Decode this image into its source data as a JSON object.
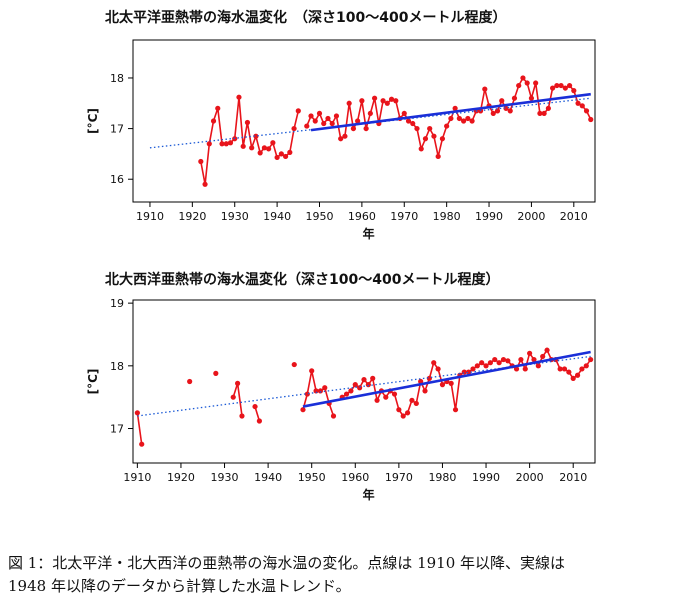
{
  "chart_data": [
    {
      "type": "line",
      "title": "北太平洋亜熱帯の海水温変化　（深さ100～400メートル程度）",
      "xlabel": "年",
      "ylabel": "[°C]",
      "xlim": [
        1906,
        2015
      ],
      "ylim": [
        15.55,
        18.75
      ],
      "xticks": [
        1910,
        1920,
        1930,
        1940,
        1950,
        1960,
        1970,
        1980,
        1990,
        2000,
        2010
      ],
      "yticks": [
        16,
        17,
        18
      ],
      "grid": false,
      "series": [
        {
          "style": "red-markers-line",
          "color": "#e8141b",
          "points": [
            [
              1922,
              16.35
            ],
            [
              1923,
              15.9
            ],
            [
              1924,
              16.7
            ],
            [
              1925,
              17.15
            ],
            [
              1926,
              17.4
            ],
            [
              1927,
              16.7
            ],
            [
              1928,
              16.7
            ],
            [
              1929,
              16.72
            ],
            [
              1930,
              16.8
            ],
            [
              1931,
              17.62
            ],
            [
              1932,
              16.65
            ],
            [
              1933,
              17.12
            ],
            [
              1934,
              16.62
            ],
            [
              1935,
              16.85
            ],
            [
              1936,
              16.52
            ],
            [
              1937,
              16.62
            ],
            [
              1938,
              16.6
            ],
            [
              1939,
              16.72
            ],
            [
              1940,
              16.43
            ],
            [
              1941,
              16.5
            ],
            [
              1942,
              16.45
            ],
            [
              1943,
              16.53
            ],
            [
              1944,
              17.0
            ],
            [
              1945,
              17.35
            ],
            [
              null,
              null
            ],
            [
              1947,
              17.05
            ],
            [
              1948,
              17.25
            ],
            [
              1949,
              17.15
            ],
            [
              1950,
              17.3
            ],
            [
              1951,
              17.1
            ],
            [
              1952,
              17.2
            ],
            [
              1953,
              17.1
            ],
            [
              1954,
              17.25
            ],
            [
              1955,
              16.8
            ],
            [
              1956,
              16.85
            ],
            [
              1957,
              17.5
            ],
            [
              1958,
              17.0
            ],
            [
              1959,
              17.15
            ],
            [
              1960,
              17.55
            ],
            [
              1961,
              17.0
            ],
            [
              1962,
              17.3
            ],
            [
              1963,
              17.6
            ],
            [
              1964,
              17.1
            ],
            [
              1965,
              17.55
            ],
            [
              1966,
              17.5
            ],
            [
              1967,
              17.58
            ],
            [
              1968,
              17.55
            ],
            [
              1969,
              17.2
            ],
            [
              1970,
              17.3
            ],
            [
              1971,
              17.15
            ],
            [
              1972,
              17.1
            ],
            [
              1973,
              17.0
            ],
            [
              1974,
              16.6
            ],
            [
              1975,
              16.8
            ],
            [
              1976,
              17.0
            ],
            [
              1977,
              16.85
            ],
            [
              1978,
              16.45
            ],
            [
              1979,
              16.8
            ],
            [
              1980,
              17.05
            ],
            [
              1981,
              17.2
            ],
            [
              1982,
              17.4
            ],
            [
              1983,
              17.2
            ],
            [
              1984,
              17.15
            ],
            [
              1985,
              17.2
            ],
            [
              1986,
              17.15
            ],
            [
              1987,
              17.35
            ],
            [
              1988,
              17.35
            ],
            [
              1989,
              17.78
            ],
            [
              1990,
              17.45
            ],
            [
              1991,
              17.3
            ],
            [
              1992,
              17.35
            ],
            [
              1993,
              17.55
            ],
            [
              1994,
              17.4
            ],
            [
              1995,
              17.35
            ],
            [
              1996,
              17.6
            ],
            [
              1997,
              17.85
            ],
            [
              1998,
              18.0
            ],
            [
              1999,
              17.9
            ],
            [
              2000,
              17.6
            ],
            [
              2001,
              17.9
            ],
            [
              2002,
              17.3
            ],
            [
              2003,
              17.3
            ],
            [
              2004,
              17.4
            ],
            [
              2005,
              17.8
            ],
            [
              2006,
              17.85
            ],
            [
              2007,
              17.85
            ],
            [
              2008,
              17.8
            ],
            [
              2009,
              17.85
            ],
            [
              2010,
              17.75
            ],
            [
              2011,
              17.5
            ],
            [
              2012,
              17.45
            ],
            [
              2013,
              17.35
            ],
            [
              2014,
              17.18
            ]
          ]
        },
        {
          "style": "dotted-trend",
          "color": "#1c5ad6",
          "points": [
            [
              1910,
              16.62
            ],
            [
              2014,
              17.6
            ]
          ]
        },
        {
          "style": "solid-trend",
          "color": "#1a2fd8",
          "points": [
            [
              1948,
              16.97
            ],
            [
              2014,
              17.68
            ]
          ]
        }
      ]
    },
    {
      "type": "line",
      "title": "北大西洋亜熱帯の海水温変化（深さ100～400メートル程度）",
      "xlabel": "年",
      "ylabel": "[°C]",
      "xlim": [
        1909,
        2015
      ],
      "ylim": [
        16.45,
        19.05
      ],
      "xticks": [
        1910,
        1920,
        1930,
        1940,
        1950,
        1960,
        1970,
        1980,
        1990,
        2000,
        2010
      ],
      "yticks": [
        17,
        18,
        19
      ],
      "grid": false,
      "series": [
        {
          "style": "red-markers-line",
          "color": "#e8141b",
          "points": [
            [
              1910,
              17.25
            ],
            [
              1911,
              16.75
            ],
            [
              null,
              null
            ],
            [
              1922,
              17.75
            ],
            [
              null,
              null
            ],
            [
              1928,
              17.88
            ],
            [
              null,
              null
            ],
            [
              1932,
              17.5
            ],
            [
              1933,
              17.72
            ],
            [
              1934,
              17.2
            ],
            [
              null,
              null
            ],
            [
              1937,
              17.35
            ],
            [
              1938,
              17.12
            ],
            [
              null,
              null
            ],
            [
              1946,
              18.02
            ],
            [
              null,
              null
            ],
            [
              1948,
              17.3
            ],
            [
              1949,
              17.55
            ],
            [
              1950,
              17.92
            ],
            [
              1951,
              17.6
            ],
            [
              1952,
              17.6
            ],
            [
              1953,
              17.65
            ],
            [
              1954,
              17.4
            ],
            [
              1955,
              17.2
            ],
            [
              null,
              null
            ],
            [
              1957,
              17.5
            ],
            [
              1958,
              17.55
            ],
            [
              1959,
              17.6
            ],
            [
              1960,
              17.7
            ],
            [
              1961,
              17.65
            ],
            [
              1962,
              17.78
            ],
            [
              1963,
              17.7
            ],
            [
              1964,
              17.8
            ],
            [
              1965,
              17.45
            ],
            [
              1966,
              17.6
            ],
            [
              1967,
              17.5
            ],
            [
              1968,
              17.6
            ],
            [
              1969,
              17.55
            ],
            [
              1970,
              17.3
            ],
            [
              1971,
              17.2
            ],
            [
              1972,
              17.25
            ],
            [
              1973,
              17.45
            ],
            [
              1974,
              17.4
            ],
            [
              1975,
              17.75
            ],
            [
              1976,
              17.6
            ],
            [
              1977,
              17.8
            ],
            [
              1978,
              18.05
            ],
            [
              1979,
              17.95
            ],
            [
              1980,
              17.7
            ],
            [
              1981,
              17.75
            ],
            [
              1982,
              17.72
            ],
            [
              1983,
              17.3
            ],
            [
              1984,
              17.85
            ],
            [
              1985,
              17.9
            ],
            [
              1986,
              17.9
            ],
            [
              1987,
              17.95
            ],
            [
              1988,
              18.0
            ],
            [
              1989,
              18.05
            ],
            [
              1990,
              18.0
            ],
            [
              1991,
              18.05
            ],
            [
              1992,
              18.1
            ],
            [
              1993,
              18.05
            ],
            [
              1994,
              18.1
            ],
            [
              1995,
              18.08
            ],
            [
              1996,
              18.0
            ],
            [
              1997,
              17.95
            ],
            [
              1998,
              18.1
            ],
            [
              1999,
              17.95
            ],
            [
              2000,
              18.2
            ],
            [
              2001,
              18.1
            ],
            [
              2002,
              18.0
            ],
            [
              2003,
              18.15
            ],
            [
              2004,
              18.25
            ],
            [
              2005,
              18.1
            ],
            [
              2006,
              18.1
            ],
            [
              2007,
              17.95
            ],
            [
              2008,
              17.95
            ],
            [
              2009,
              17.9
            ],
            [
              2010,
              17.8
            ],
            [
              2011,
              17.85
            ],
            [
              2012,
              17.95
            ],
            [
              2013,
              18.0
            ],
            [
              2014,
              18.1
            ]
          ]
        },
        {
          "style": "dotted-trend",
          "color": "#1c5ad6",
          "points": [
            [
              1910,
              17.2
            ],
            [
              2014,
              18.15
            ]
          ]
        },
        {
          "style": "solid-trend",
          "color": "#1a2fd8",
          "points": [
            [
              1948,
              17.35
            ],
            [
              2014,
              18.22
            ]
          ]
        }
      ]
    }
  ],
  "caption": {
    "line1": "図 1：北太平洋・北大西洋の亜熱帯の海水温の変化。点線は 1910 年以降、実線は",
    "line2": "1948 年以降のデータから計算した水温トレンド。"
  }
}
